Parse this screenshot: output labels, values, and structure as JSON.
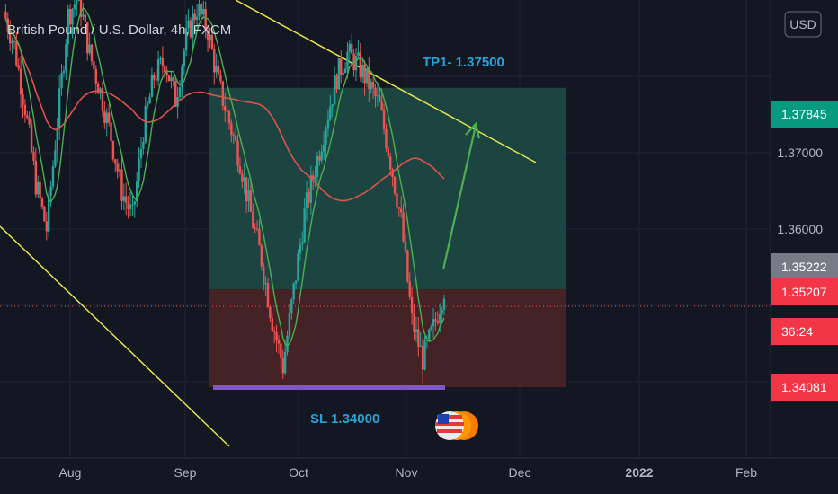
{
  "header": {
    "symbol_title": "British Pound / U.S. Dollar, 4h, FXCM",
    "currency_button": "USD"
  },
  "colors": {
    "background": "#131722",
    "grid": "#1f2433",
    "up_candle": "#26a69a",
    "down_candle": "#ef5350",
    "ma_fast": "#4caf50",
    "ma_slow": "#e0524a",
    "trendline": "#e8e54a",
    "target_zone": "#1f4d48",
    "stop_zone": "#4a2326",
    "sl_bar": "#7e57c2",
    "arrow": "#4caf50",
    "annotation": "#2aa1d6"
  },
  "chart_data": {
    "type": "candlestick",
    "title": "British Pound / U.S. Dollar, 4h, FXCM",
    "y_ticks": [
      "1.37000",
      "1.36000"
    ],
    "y_range": [
      1.33,
      1.39
    ],
    "x_ticks": [
      "Aug",
      "Sep",
      "Oct",
      "Nov",
      "Dec",
      "2022",
      "Feb"
    ],
    "price_tags": [
      {
        "value": "1.37845",
        "color": "#089981"
      },
      {
        "value": "1.35222",
        "color": "#787b86"
      },
      {
        "value": "1.35207",
        "color": "#f23645"
      },
      {
        "value": "36:24",
        "color": "#f23645"
      },
      {
        "value": "1.34081",
        "color": "#f23645"
      }
    ],
    "series_close": [
      1.3885,
      1.384,
      1.376,
      1.366,
      1.36,
      1.374,
      1.388,
      1.3905,
      1.383,
      1.378,
      1.372,
      1.365,
      1.3615,
      1.373,
      1.38,
      1.382,
      1.377,
      1.385,
      1.389,
      1.386,
      1.379,
      1.374,
      1.369,
      1.362,
      1.356,
      1.348,
      1.342,
      1.352,
      1.362,
      1.368,
      1.374,
      1.38,
      1.383,
      1.3815,
      1.379,
      1.376,
      1.369,
      1.361,
      1.348,
      1.343,
      1.347,
      1.3522
    ],
    "annotations": {
      "tp": {
        "label": "TP1- 1.37500",
        "value": 1.375
      },
      "sl": {
        "label": "SL 1.34000",
        "value": 1.34
      },
      "entry": 1.3521,
      "target": 1.3785
    }
  }
}
